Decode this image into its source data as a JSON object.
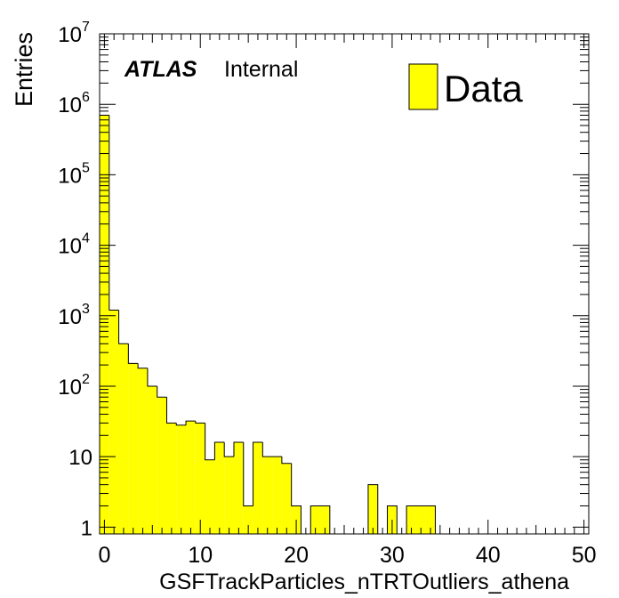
{
  "chart_data": {
    "type": "bar",
    "style": "histogram",
    "xlabel": "GSFTrackParticles_nTRTOutliers_athena",
    "ylabel": "Entries",
    "xlim": [
      -0.5,
      50.5
    ],
    "ylim": [
      0.8,
      10000000
    ],
    "log_y": true,
    "grid": false,
    "bin_width": 1,
    "x_ticks": [
      "0",
      "10",
      "20",
      "30",
      "40",
      "50"
    ],
    "y_ticks": [
      {
        "base": "1",
        "exp": ""
      },
      {
        "base": "10",
        "exp": ""
      },
      {
        "base": "10",
        "exp": "2"
      },
      {
        "base": "10",
        "exp": "3"
      },
      {
        "base": "10",
        "exp": "4"
      },
      {
        "base": "10",
        "exp": "5"
      },
      {
        "base": "10",
        "exp": "6"
      },
      {
        "base": "10",
        "exp": "7"
      }
    ],
    "series": [
      {
        "name": "Data",
        "color": "#ffff00",
        "bins": [
          {
            "x": 0,
            "y": 700000
          },
          {
            "x": 1,
            "y": 1200
          },
          {
            "x": 2,
            "y": 400
          },
          {
            "x": 3,
            "y": 210
          },
          {
            "x": 4,
            "y": 180
          },
          {
            "x": 5,
            "y": 100
          },
          {
            "x": 6,
            "y": 70
          },
          {
            "x": 7,
            "y": 30
          },
          {
            "x": 8,
            "y": 28
          },
          {
            "x": 9,
            "y": 32
          },
          {
            "x": 10,
            "y": 30
          },
          {
            "x": 11,
            "y": 9
          },
          {
            "x": 12,
            "y": 16
          },
          {
            "x": 13,
            "y": 10
          },
          {
            "x": 14,
            "y": 16
          },
          {
            "x": 15,
            "y": 2
          },
          {
            "x": 16,
            "y": 16
          },
          {
            "x": 17,
            "y": 10
          },
          {
            "x": 18,
            "y": 10
          },
          {
            "x": 19,
            "y": 8
          },
          {
            "x": 20,
            "y": 2
          },
          {
            "x": 22,
            "y": 2
          },
          {
            "x": 23,
            "y": 2
          },
          {
            "x": 28,
            "y": 4
          },
          {
            "x": 30,
            "y": 2
          },
          {
            "x": 32,
            "y": 2
          },
          {
            "x": 33,
            "y": 2
          },
          {
            "x": 34,
            "y": 2
          }
        ]
      }
    ],
    "legend": {
      "position": "top-right",
      "label": "Data"
    },
    "annotation": {
      "bold": "ATLAS",
      "text": "Internal"
    }
  }
}
